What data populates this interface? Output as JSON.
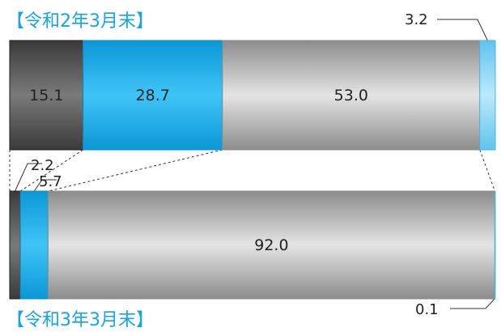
{
  "chart_data": [
    {
      "type": "bar",
      "orientation": "horizontal-stacked",
      "title": "【令和2年3月末】",
      "values": [
        15.1,
        28.7,
        53.0,
        3.2
      ],
      "labels": [
        "15.1",
        "28.7",
        "53.0",
        "3.2"
      ],
      "colors": [
        "#4a4a4a",
        "#12a6e4",
        "#a9a9a9",
        "#7fd0f3"
      ]
    },
    {
      "type": "bar",
      "orientation": "horizontal-stacked",
      "title": "【令和3年3月末】",
      "values": [
        2.2,
        5.7,
        92.0,
        0.1
      ],
      "labels": [
        "2.2",
        "5.7",
        "92.0",
        "0.1"
      ],
      "colors": [
        "#4a4a4a",
        "#12a6e4",
        "#a9a9a9",
        "#7fd0f3"
      ]
    }
  ]
}
